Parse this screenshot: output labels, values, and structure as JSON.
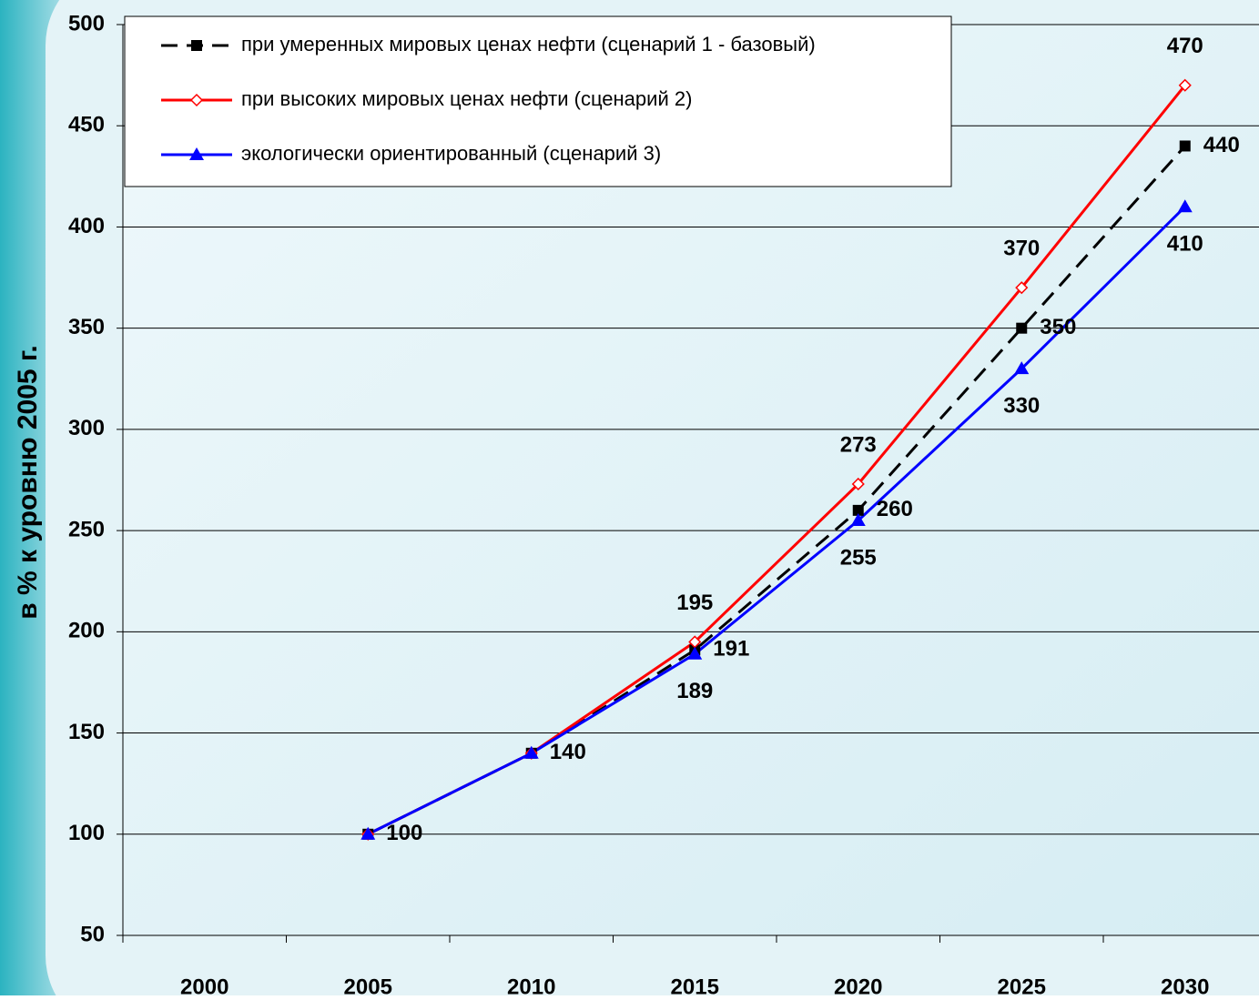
{
  "chart_data": {
    "type": "line",
    "y_axis_label": "в % к уровню 2005 г.",
    "categories": [
      "2000",
      "2005",
      "2010",
      "2015",
      "2020",
      "2025",
      "2030"
    ],
    "series": [
      {
        "name": "при умеренных мировых ценах нефти (сценарий 1 - базовый)",
        "color": "#000000",
        "dash": true,
        "marker": "square",
        "values": [
          null,
          100,
          140,
          191,
          260,
          350,
          440
        ],
        "value_labels": [
          null,
          100,
          140,
          191,
          260,
          350,
          440
        ]
      },
      {
        "name": "при высоких мировых ценах нефти (сценарий 2)",
        "color": "#ff0000",
        "dash": false,
        "marker": "diamond",
        "values": [
          null,
          100,
          140,
          195,
          273,
          370,
          470
        ],
        "value_labels": [
          null,
          null,
          null,
          195,
          273,
          370,
          470
        ]
      },
      {
        "name": "экологически ориентированный (сценарий 3)",
        "color": "#0000ff",
        "dash": false,
        "marker": "triangle",
        "values": [
          null,
          100,
          140,
          189,
          255,
          330,
          410
        ],
        "value_labels": [
          null,
          null,
          null,
          189,
          255,
          330,
          410
        ]
      }
    ],
    "ylim": [
      50,
      500
    ],
    "yticks": [
      50,
      100,
      150,
      200,
      250,
      300,
      350,
      400,
      450,
      500
    ],
    "grid": true
  }
}
